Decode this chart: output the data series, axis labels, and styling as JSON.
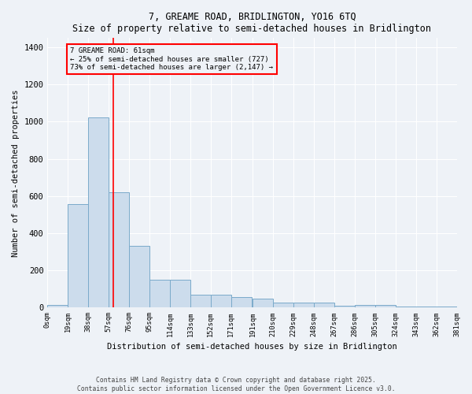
{
  "title1": "7, GREAME ROAD, BRIDLINGTON, YO16 6TQ",
  "title2": "Size of property relative to semi-detached houses in Bridlington",
  "xlabel": "Distribution of semi-detached houses by size in Bridlington",
  "ylabel": "Number of semi-detached properties",
  "bar_color": "#ccdcec",
  "bar_edge_color": "#7aaaca",
  "bins": [
    0,
    19,
    38,
    57,
    76,
    95,
    114,
    133,
    152,
    171,
    191,
    210,
    229,
    248,
    267,
    286,
    305,
    324,
    343,
    362,
    381
  ],
  "bin_labels": [
    "0sqm",
    "19sqm",
    "38sqm",
    "57sqm",
    "76sqm",
    "95sqm",
    "114sqm",
    "133sqm",
    "152sqm",
    "171sqm",
    "191sqm",
    "210sqm",
    "229sqm",
    "248sqm",
    "267sqm",
    "286sqm",
    "305sqm",
    "324sqm",
    "343sqm",
    "362sqm",
    "381sqm"
  ],
  "values": [
    15,
    555,
    1025,
    620,
    330,
    150,
    150,
    70,
    70,
    55,
    50,
    25,
    25,
    25,
    10,
    15,
    15,
    5,
    5,
    5
  ],
  "property_line_x": 61,
  "annotation_title": "7 GREAME ROAD: 61sqm",
  "annotation_line1": "← 25% of semi-detached houses are smaller (727)",
  "annotation_line2": "73% of semi-detached houses are larger (2,147) →",
  "ylim": [
    0,
    1450
  ],
  "yticks": [
    0,
    200,
    400,
    600,
    800,
    1000,
    1200,
    1400
  ],
  "footer1": "Contains HM Land Registry data © Crown copyright and database right 2025.",
  "footer2": "Contains public sector information licensed under the Open Government Licence v3.0.",
  "bg_color": "#eef2f7",
  "grid_color": "#ffffff"
}
